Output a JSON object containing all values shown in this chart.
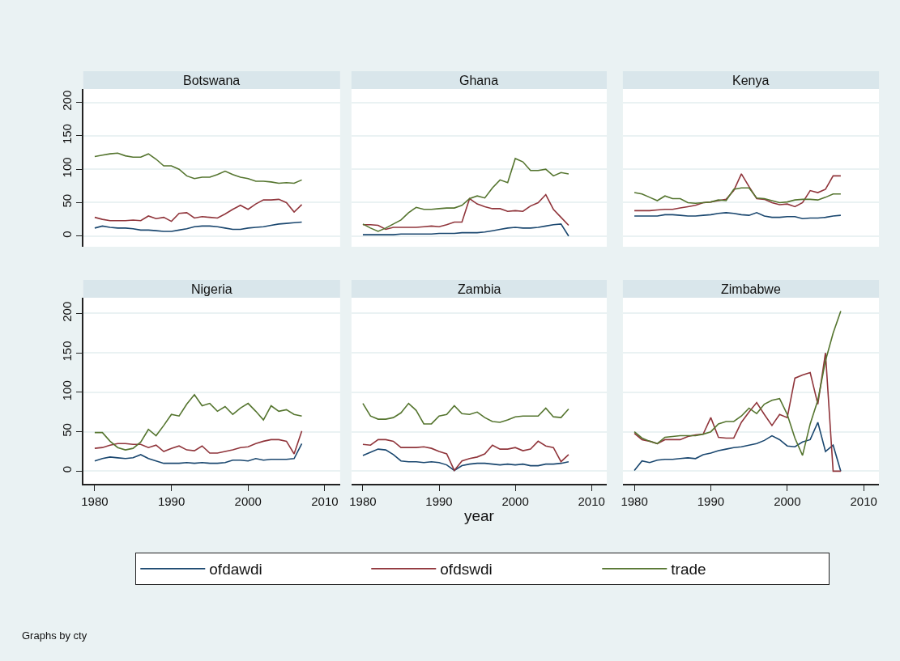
{
  "chart_data": [
    {
      "type": "line",
      "title": "Botswana",
      "x": [
        1980,
        1981,
        1982,
        1983,
        1984,
        1985,
        1986,
        1987,
        1988,
        1989,
        1990,
        1991,
        1992,
        1993,
        1994,
        1995,
        1996,
        1997,
        1998,
        1999,
        2000,
        2001,
        2002,
        2003,
        2004,
        2005,
        2006,
        2007
      ],
      "xlim": [
        1978.5,
        2012
      ],
      "ylim": [
        -16,
        220
      ],
      "yticks": [
        0,
        50,
        100,
        150,
        200
      ],
      "xticks": [
        1980,
        1990,
        2000,
        2010
      ],
      "grid": "y",
      "tick_labels": "y",
      "legend": "bottom",
      "annotations": [
        "Graphs by cty"
      ],
      "series": [
        {
          "name": "ofdawdi",
          "color": "#1a476f",
          "values": [
            12,
            15,
            13,
            12,
            12,
            11,
            9,
            9,
            8,
            7,
            7,
            9,
            11,
            14,
            15,
            15,
            14,
            12,
            10,
            10,
            12,
            13,
            14,
            16,
            18,
            19,
            20,
            21
          ]
        },
        {
          "name": "ofdswdi",
          "color": "#90353b",
          "values": [
            28,
            25,
            23,
            23,
            23,
            24,
            23,
            30,
            26,
            28,
            22,
            34,
            35,
            27,
            29,
            28,
            27,
            33,
            40,
            46,
            40,
            48,
            54,
            54,
            55,
            50,
            36,
            47
          ]
        },
        {
          "name": "trade",
          "color": "#55752f",
          "values": [
            119,
            121,
            123,
            124,
            120,
            118,
            118,
            123,
            115,
            105,
            105,
            100,
            90,
            86,
            88,
            88,
            92,
            97,
            92,
            88,
            86,
            82,
            82,
            81,
            79,
            80,
            79,
            84
          ]
        }
      ]
    },
    {
      "type": "line",
      "title": "Ghana",
      "x": [
        1980,
        1981,
        1982,
        1983,
        1984,
        1985,
        1986,
        1987,
        1988,
        1989,
        1990,
        1991,
        1992,
        1993,
        1994,
        1995,
        1996,
        1997,
        1998,
        1999,
        2000,
        2001,
        2002,
        2003,
        2004,
        2005,
        2006,
        2007
      ],
      "xlim": [
        1978.5,
        2012
      ],
      "ylim": [
        -16,
        220
      ],
      "yticks": [
        0,
        50,
        100,
        150,
        200
      ],
      "xticks": [
        1980,
        1990,
        2000,
        2010
      ],
      "grid": "y",
      "tick_labels": false,
      "series": [
        {
          "color": "#1a476f",
          "values": [
            2,
            2,
            2,
            2,
            2,
            3,
            3,
            3,
            3,
            3,
            4,
            4,
            4,
            5,
            5,
            5,
            6,
            8,
            10,
            12,
            13,
            12,
            12,
            13,
            15,
            17,
            18,
            0
          ]
        },
        {
          "color": "#90353b",
          "values": [
            17,
            17,
            16,
            10,
            13,
            13,
            13,
            13,
            14,
            15,
            14,
            17,
            21,
            21,
            56,
            48,
            44,
            41,
            41,
            37,
            38,
            37,
            45,
            50,
            62,
            40,
            28,
            16
          ]
        },
        {
          "color": "#55752f",
          "values": [
            18,
            12,
            7,
            12,
            18,
            24,
            35,
            43,
            40,
            40,
            41,
            42,
            42,
            46,
            56,
            60,
            57,
            72,
            84,
            80,
            116,
            111,
            98,
            98,
            100,
            90,
            95,
            93
          ]
        }
      ]
    },
    {
      "type": "line",
      "title": "Kenya",
      "x": [
        1980,
        1981,
        1982,
        1983,
        1984,
        1985,
        1986,
        1987,
        1988,
        1989,
        1990,
        1991,
        1992,
        1993,
        1994,
        1995,
        1996,
        1997,
        1998,
        1999,
        2000,
        2001,
        2002,
        2003,
        2004,
        2005,
        2006,
        2007
      ],
      "xlim": [
        1978.5,
        2012
      ],
      "ylim": [
        -16,
        220
      ],
      "yticks": [
        0,
        50,
        100,
        150,
        200
      ],
      "xticks": [
        1980,
        1990,
        2000,
        2010
      ],
      "grid": "y",
      "tick_labels": false,
      "series": [
        {
          "color": "#1a476f",
          "values": [
            30,
            30,
            30,
            30,
            32,
            32,
            31,
            30,
            30,
            31,
            32,
            34,
            35,
            34,
            32,
            31,
            35,
            30,
            28,
            28,
            29,
            29,
            26,
            27,
            27,
            28,
            30,
            31
          ]
        },
        {
          "color": "#90353b",
          "values": [
            38,
            38,
            38,
            39,
            40,
            40,
            42,
            44,
            46,
            50,
            51,
            53,
            55,
            68,
            93,
            74,
            56,
            55,
            50,
            47,
            48,
            44,
            50,
            68,
            65,
            70,
            90,
            90
          ]
        },
        {
          "color": "#55752f",
          "values": [
            65,
            63,
            58,
            53,
            60,
            56,
            56,
            50,
            49,
            50,
            51,
            54,
            53,
            70,
            72,
            72,
            57,
            56,
            53,
            50,
            51,
            54,
            55,
            55,
            54,
            58,
            63,
            63
          ]
        }
      ]
    },
    {
      "type": "line",
      "title": "Nigeria",
      "x": [
        1980,
        1981,
        1982,
        1983,
        1984,
        1985,
        1986,
        1987,
        1988,
        1989,
        1990,
        1991,
        1992,
        1993,
        1994,
        1995,
        1996,
        1997,
        1998,
        1999,
        2000,
        2001,
        2002,
        2003,
        2004,
        2005,
        2006,
        2007
      ],
      "xlim": [
        1978.5,
        2012
      ],
      "ylim": [
        -16,
        220
      ],
      "yticks": [
        0,
        50,
        100,
        150,
        200
      ],
      "xticks": [
        1980,
        1990,
        2000,
        2010
      ],
      "grid": "y",
      "series": [
        {
          "color": "#1a476f",
          "values": [
            13,
            16,
            18,
            17,
            16,
            17,
            21,
            16,
            13,
            10,
            10,
            10,
            11,
            10,
            11,
            10,
            10,
            11,
            14,
            14,
            13,
            16,
            14,
            15,
            15,
            15,
            16,
            35
          ]
        },
        {
          "color": "#90353b",
          "values": [
            29,
            30,
            33,
            35,
            35,
            34,
            34,
            30,
            33,
            25,
            29,
            32,
            27,
            26,
            32,
            23,
            23,
            25,
            27,
            30,
            31,
            35,
            38,
            40,
            40,
            38,
            22,
            51
          ]
        },
        {
          "color": "#55752f",
          "values": [
            49,
            49,
            38,
            30,
            27,
            29,
            37,
            53,
            45,
            58,
            72,
            70,
            85,
            97,
            83,
            86,
            76,
            82,
            72,
            80,
            86,
            76,
            65,
            83,
            76,
            78,
            72,
            70
          ]
        }
      ]
    },
    {
      "type": "line",
      "title": "Zambia",
      "xlabel": "year",
      "x": [
        1980,
        1981,
        1982,
        1983,
        1984,
        1985,
        1986,
        1987,
        1988,
        1989,
        1990,
        1991,
        1992,
        1993,
        1994,
        1995,
        1996,
        1997,
        1998,
        1999,
        2000,
        2001,
        2002,
        2003,
        2004,
        2005,
        2006,
        2007
      ],
      "xlim": [
        1978.5,
        2012
      ],
      "ylim": [
        -16,
        220
      ],
      "yticks": [
        0,
        50,
        100,
        150,
        200
      ],
      "xticks": [
        1980,
        1990,
        2000,
        2010
      ],
      "grid": "y",
      "tick_labels": "x",
      "series": [
        {
          "color": "#1a476f",
          "values": [
            20,
            24,
            28,
            27,
            21,
            13,
            12,
            12,
            11,
            12,
            11,
            8,
            1,
            7,
            9,
            10,
            10,
            9,
            8,
            9,
            8,
            9,
            7,
            7,
            9,
            9,
            10,
            12
          ]
        },
        {
          "color": "#90353b",
          "values": [
            34,
            33,
            40,
            40,
            38,
            30,
            30,
            30,
            31,
            29,
            25,
            22,
            1,
            13,
            16,
            18,
            22,
            33,
            28,
            28,
            30,
            26,
            28,
            38,
            32,
            30,
            12,
            21
          ]
        },
        {
          "color": "#55752f",
          "values": [
            86,
            70,
            66,
            66,
            68,
            74,
            86,
            77,
            60,
            60,
            70,
            72,
            83,
            73,
            72,
            75,
            68,
            63,
            62,
            65,
            69,
            70,
            70,
            70,
            80,
            69,
            68,
            79
          ]
        }
      ]
    },
    {
      "type": "line",
      "title": "Zimbabwe",
      "x": [
        1980,
        1981,
        1982,
        1983,
        1984,
        1985,
        1986,
        1987,
        1988,
        1989,
        1990,
        1991,
        1992,
        1993,
        1994,
        1995,
        1996,
        1997,
        1998,
        1999,
        2000,
        2001,
        2002,
        2003,
        2004,
        2005,
        2006,
        2007
      ],
      "xlim": [
        1978.5,
        2012
      ],
      "ylim": [
        -16,
        220
      ],
      "yticks": [
        0,
        50,
        100,
        150,
        200
      ],
      "xticks": [
        1980,
        1990,
        2000,
        2010
      ],
      "grid": "y",
      "tick_labels": "x",
      "series": [
        {
          "color": "#1a476f",
          "values": [
            1,
            13,
            11,
            14,
            15,
            15,
            16,
            17,
            16,
            21,
            23,
            26,
            28,
            30,
            31,
            33,
            35,
            39,
            45,
            40,
            32,
            31,
            37,
            40,
            62,
            25,
            33,
            0
          ]
        },
        {
          "color": "#90353b",
          "values": [
            48,
            40,
            38,
            35,
            40,
            40,
            40,
            44,
            46,
            47,
            68,
            43,
            42,
            42,
            62,
            75,
            87,
            72,
            58,
            72,
            68,
            118,
            122,
            125,
            85,
            150,
            0,
            0
          ]
        },
        {
          "color": "#55752f",
          "values": [
            50,
            42,
            38,
            35,
            43,
            44,
            45,
            45,
            45,
            47,
            50,
            60,
            63,
            63,
            70,
            80,
            73,
            85,
            90,
            92,
            72,
            42,
            20,
            60,
            90,
            140,
            175,
            203
          ]
        }
      ]
    }
  ]
}
